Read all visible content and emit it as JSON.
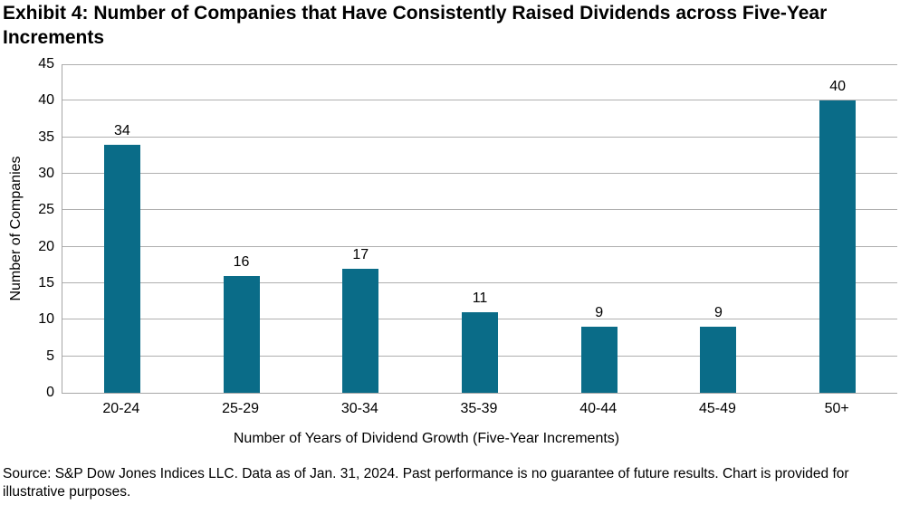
{
  "page": {
    "source_note": "Source: S&P Dow Jones Indices LLC. Data as of Jan. 31, 2024. Past performance is no guarantee of future results. Chart is provided for illustrative purposes."
  },
  "chart_data": {
    "type": "bar",
    "title": "Exhibit 4: Number of Companies that Have Consistently Raised Dividends across Five-Year Increments",
    "categories": [
      "20-24",
      "25-29",
      "30-34",
      "35-39",
      "40-44",
      "45-49",
      "50+"
    ],
    "values": [
      34,
      16,
      17,
      11,
      9,
      9,
      40
    ],
    "xlabel": "Number of Years of Dividend Growth (Five-Year Increments)",
    "ylabel": "Number of Companies",
    "ylim": [
      0,
      45
    ],
    "ytick_step": 5,
    "grid": "horizontal",
    "data_labels": true,
    "legend": "none",
    "colors": {
      "bar": "#0A6C88",
      "gridline": "#AFAFAF",
      "axis": "#A6A6A6",
      "text": "#000000"
    }
  }
}
